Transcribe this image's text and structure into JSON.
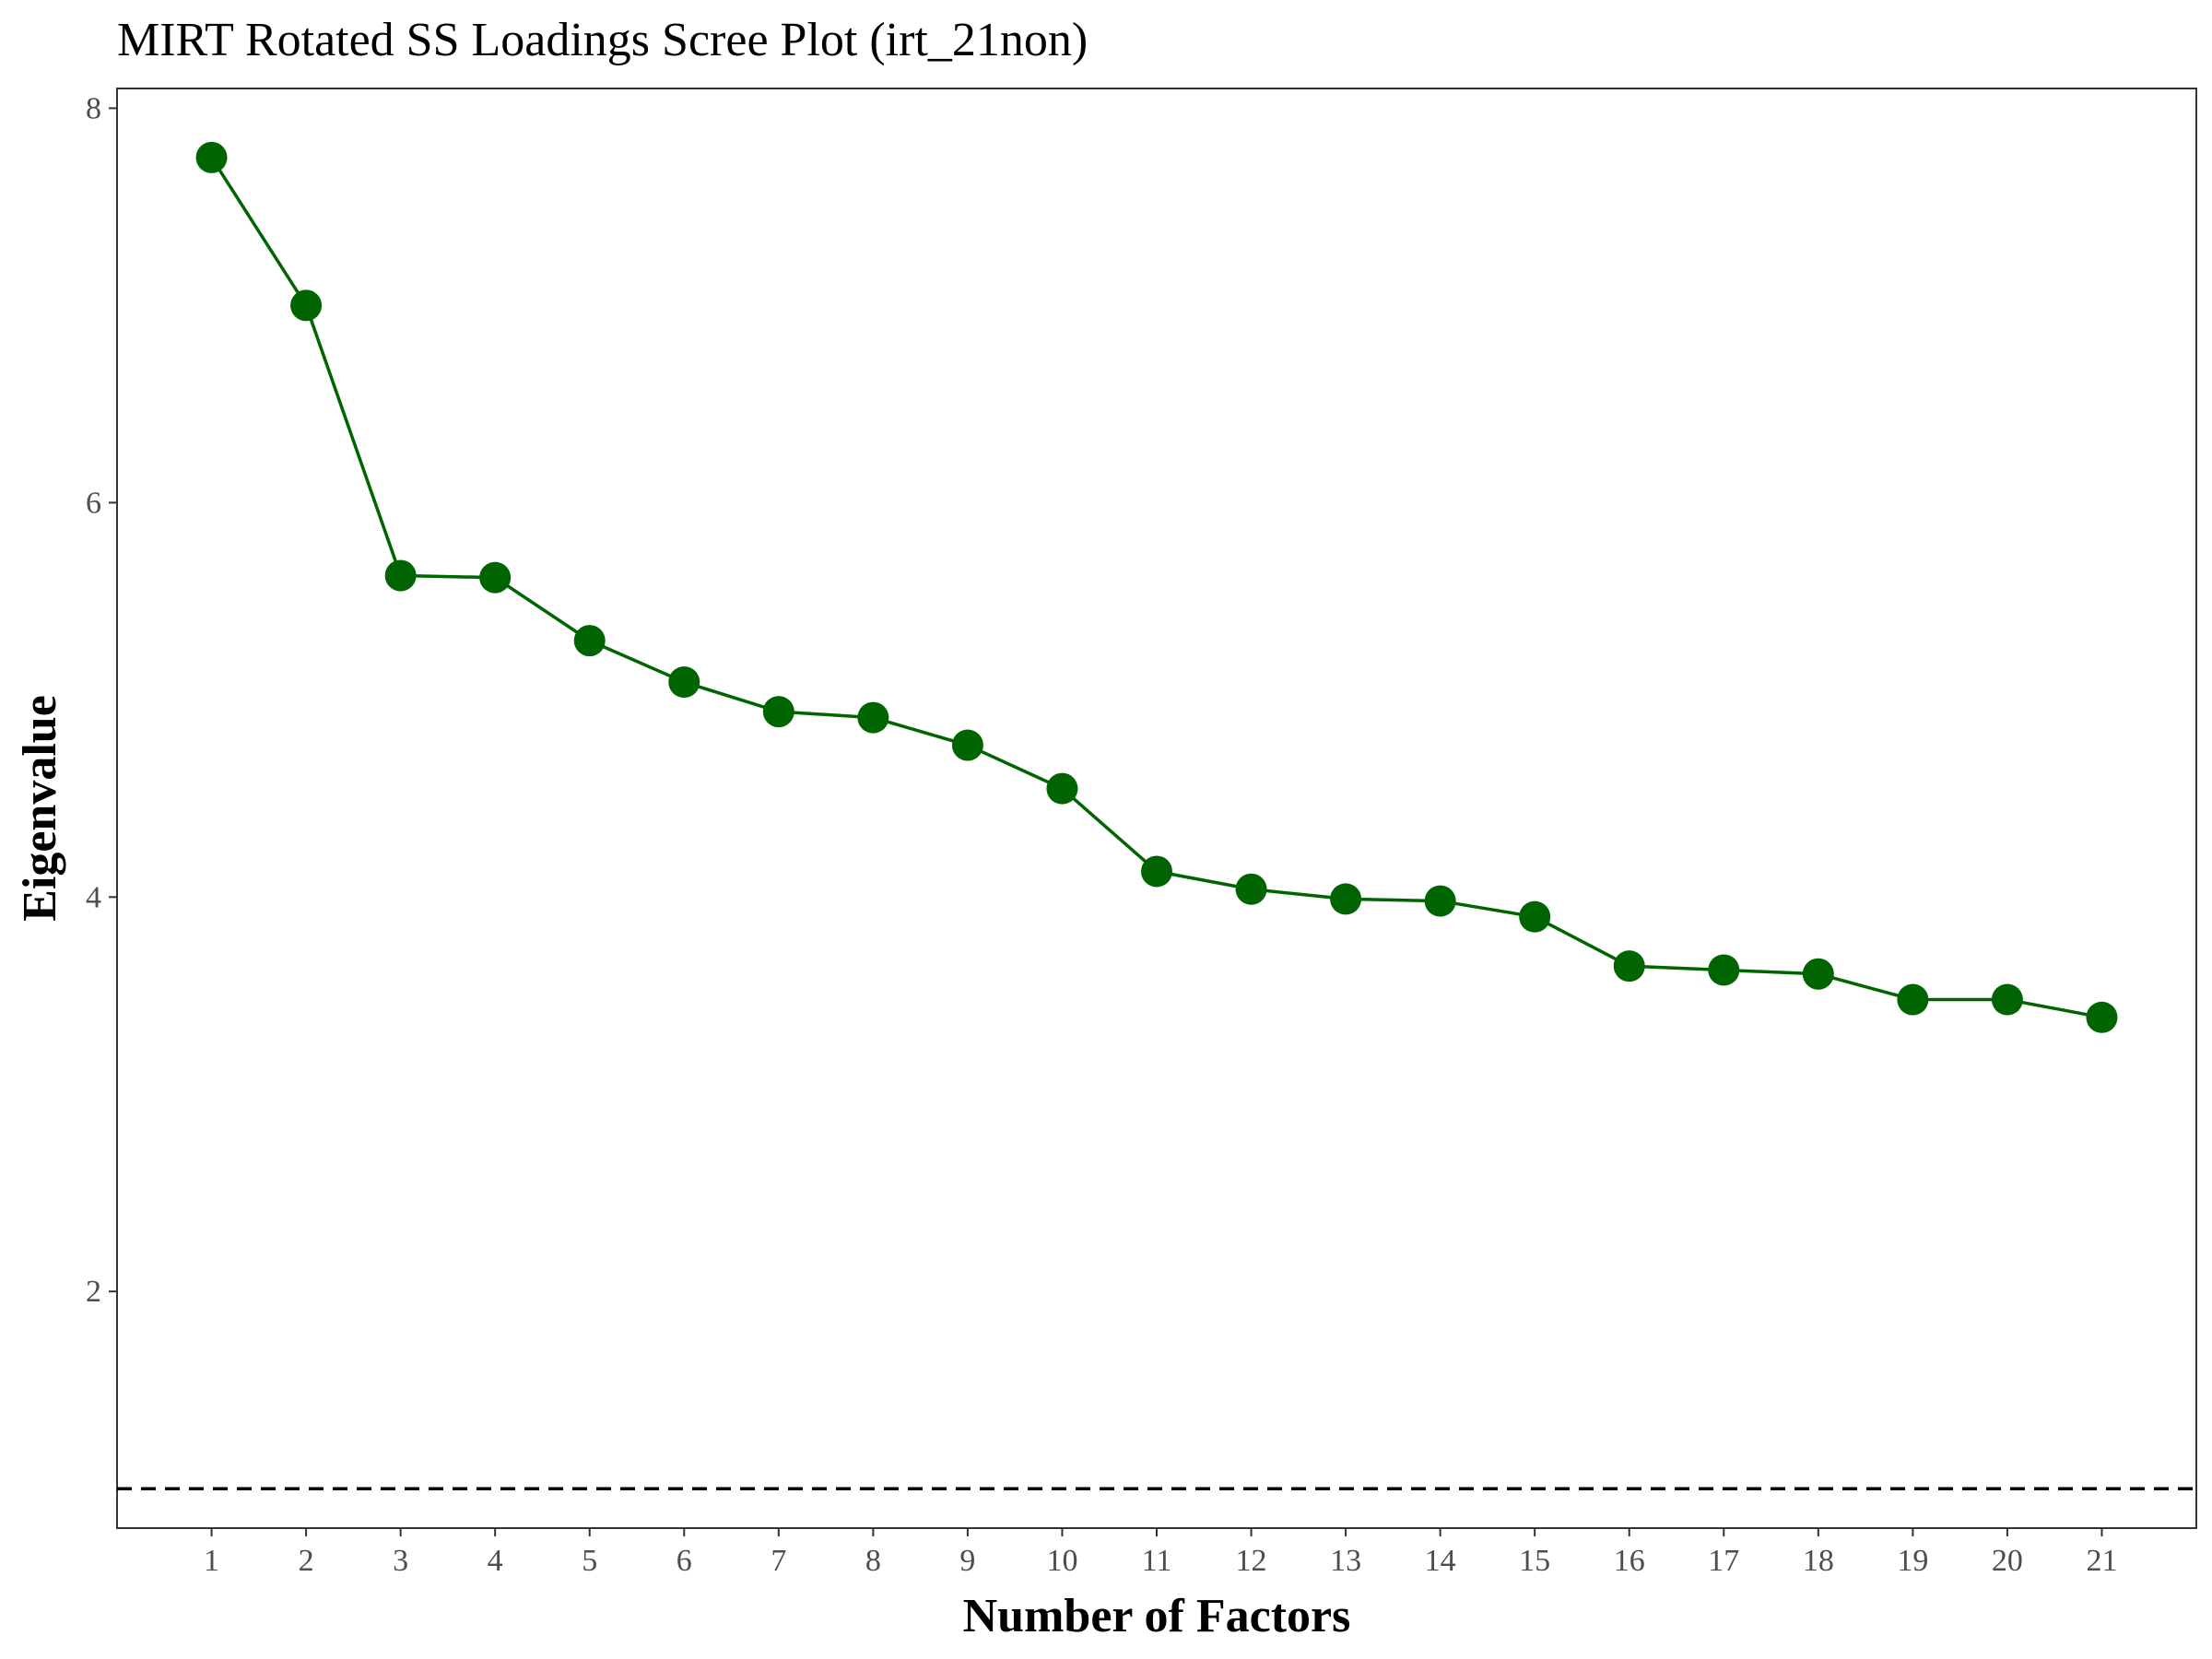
{
  "chart_data": {
    "type": "line",
    "title": "MIRT Rotated SS Loadings Scree Plot (irt_21non)",
    "xlabel": "Number of Factors",
    "ylabel": "Eigenvalue",
    "x": [
      1,
      2,
      3,
      4,
      5,
      6,
      7,
      8,
      9,
      10,
      11,
      12,
      13,
      14,
      15,
      16,
      17,
      18,
      19,
      20,
      21
    ],
    "x_tick_labels": [
      "1",
      "2",
      "3",
      "4",
      "5",
      "6",
      "7",
      "8",
      "9",
      "10",
      "11",
      "12",
      "13",
      "14",
      "15",
      "16",
      "17",
      "18",
      "19",
      "20",
      "21"
    ],
    "series": [
      {
        "values": [
          7.75,
          7.0,
          5.63,
          5.62,
          5.3,
          5.09,
          4.94,
          4.91,
          4.77,
          4.55,
          4.13,
          4.04,
          3.99,
          3.98,
          3.9,
          3.65,
          3.63,
          3.61,
          3.48,
          3.48,
          3.39
        ],
        "color": "#006400",
        "marker": "circle"
      }
    ],
    "reference_line": {
      "y": 1,
      "style": "dashed",
      "color": "#000000"
    },
    "xlim": [
      0,
      22
    ],
    "ylim": [
      0.8,
      8.1
    ],
    "y_ticks": [
      2,
      4,
      6,
      8
    ],
    "y_tick_labels": [
      "2",
      "4",
      "6",
      "8"
    ],
    "grid": false,
    "legend": "none"
  }
}
